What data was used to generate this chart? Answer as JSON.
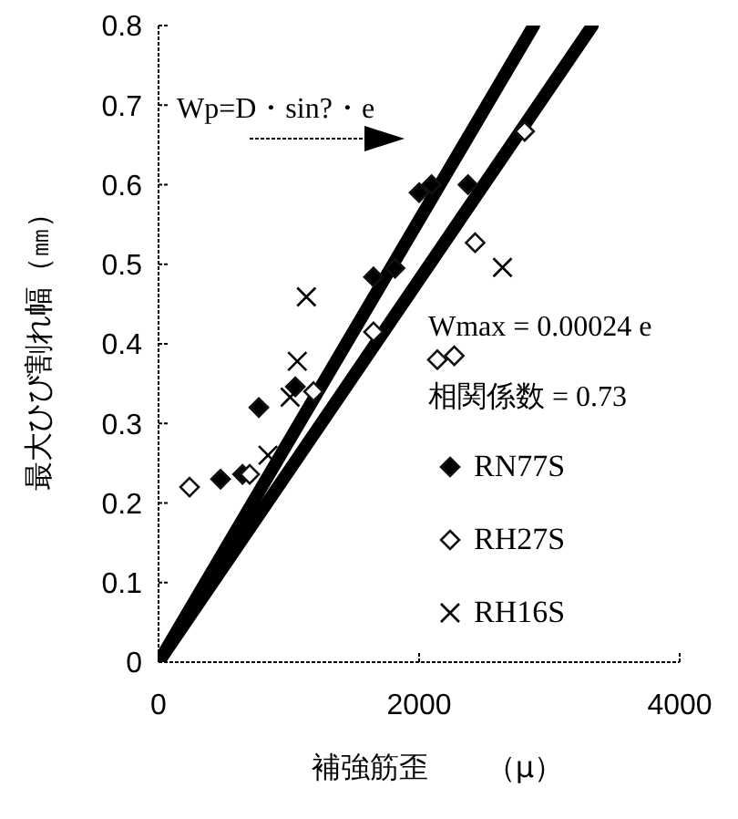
{
  "chart_data": {
    "type": "scatter",
    "xlabel": "補強筋歪　　（μ）",
    "ylabel": "最大ひび割れ幅（㎜）",
    "xlim": [
      0,
      4000
    ],
    "xticks": [
      0,
      2000,
      4000
    ],
    "ylim": [
      0,
      0.8
    ],
    "yticks": [
      0,
      0.1,
      0.2,
      0.3,
      0.4,
      0.5,
      0.6,
      0.7,
      0.8
    ],
    "grid": false,
    "legend": "right",
    "annotations": [
      "Wp=D・sin?・e",
      "Wmax = 0.00024 e",
      "相関係数 = 0.73"
    ],
    "series": [
      {
        "name": "RN77S",
        "color": "#000000",
        "marker": "diamond",
        "x": [
          476,
          645,
          770,
          1050,
          1650,
          1815,
          2000,
          2095,
          2375
        ],
        "values": [
          0.23,
          0.236,
          0.32,
          0.346,
          0.484,
          0.495,
          0.59,
          0.6,
          0.6
        ]
      },
      {
        "name": "RH27S",
        "color": "#ffffff",
        "marker": "diamond",
        "x": [
          238,
          700,
          1190,
          1650,
          2140,
          2270,
          2430,
          2810
        ],
        "values": [
          0.22,
          0.236,
          0.34,
          0.415,
          0.38,
          0.385,
          0.527,
          0.667
        ]
      },
      {
        "name": "RH16S",
        "color": "#000000",
        "marker": "cross",
        "x": [
          840,
          1010,
          1065,
          1135,
          2640
        ],
        "values": [
          0.26,
          0.333,
          0.378,
          0.459,
          0.496
        ]
      },
      {
        "type": "line",
        "color": "#000000",
        "marker": "none",
        "x": [
          0,
          2880
        ],
        "values": [
          0,
          0.8
        ]
      },
      {
        "type": "line",
        "color": "#000000",
        "marker": "none",
        "x": [
          0,
          3330
        ],
        "values": [
          0,
          0.8
        ]
      }
    ]
  }
}
